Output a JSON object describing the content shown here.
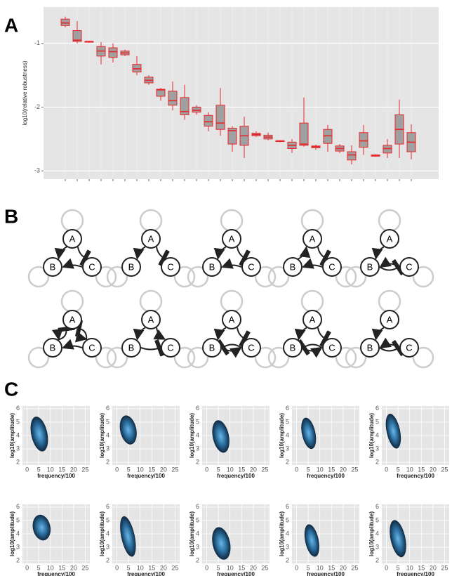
{
  "panel_labels": [
    "A",
    "B",
    "C"
  ],
  "chart_data": {
    "type": "box",
    "ylabel": "log10(relative robustness)",
    "categories": [
      null,
      null,
      null,
      null,
      null,
      null,
      null,
      null,
      null,
      null,
      null,
      null,
      null,
      null,
      null,
      null,
      null,
      null,
      null,
      null,
      null,
      null,
      null,
      null,
      null,
      null,
      null,
      null,
      null,
      null
    ],
    "color": "#e8262a",
    "fill": "#a0a0a0",
    "boxes": [
      {
        "min": -0.75,
        "q1": -0.72,
        "median": -0.68,
        "q3": -0.62,
        "max": -0.58
      },
      {
        "min": -1.0,
        "q1": -0.97,
        "median": -0.95,
        "q3": -0.8,
        "max": -0.65
      },
      {
        "min": -0.99,
        "q1": -0.98,
        "median": -0.97,
        "q3": -0.97,
        "max": -0.96
      },
      {
        "min": -1.33,
        "q1": -1.2,
        "median": -1.12,
        "q3": -1.05,
        "max": -0.98
      },
      {
        "min": -1.3,
        "q1": -1.22,
        "median": -1.13,
        "q3": -1.07,
        "max": -1.0
      },
      {
        "min": -1.2,
        "q1": -1.18,
        "median": -1.15,
        "q3": -1.12,
        "max": -1.1
      },
      {
        "min": -1.5,
        "q1": -1.45,
        "median": -1.4,
        "q3": -1.33,
        "max": -1.2
      },
      {
        "min": -1.65,
        "q1": -1.62,
        "median": -1.58,
        "q3": -1.53,
        "max": -1.5
      },
      {
        "min": -1.9,
        "q1": -1.83,
        "median": -1.73,
        "q3": -1.72,
        "max": -1.7
      },
      {
        "min": -2.05,
        "q1": -1.97,
        "median": -1.9,
        "q3": -1.75,
        "max": -1.6
      },
      {
        "min": -2.2,
        "q1": -2.12,
        "median": -2.07,
        "q3": -1.85,
        "max": -1.65
      },
      {
        "min": -2.12,
        "q1": -2.08,
        "median": -2.05,
        "q3": -2.0,
        "max": -1.97
      },
      {
        "min": -2.38,
        "q1": -2.3,
        "median": -2.23,
        "q3": -2.13,
        "max": -2.08
      },
      {
        "min": -2.45,
        "q1": -2.35,
        "median": -2.25,
        "q3": -1.97,
        "max": -1.7
      },
      {
        "min": -2.7,
        "q1": -2.58,
        "median": -2.37,
        "q3": -2.33,
        "max": -2.3
      },
      {
        "min": -2.8,
        "q1": -2.6,
        "median": -2.45,
        "q3": -2.3,
        "max": -2.15
      },
      {
        "min": -2.47,
        "q1": -2.45,
        "median": -2.43,
        "q3": -2.41,
        "max": -2.38
      },
      {
        "min": -2.52,
        "q1": -2.5,
        "median": -2.47,
        "q3": -2.44,
        "max": -2.4
      },
      {
        "min": -2.55,
        "q1": -2.54,
        "median": -2.53,
        "q3": -2.53,
        "max": -2.52
      },
      {
        "min": -2.72,
        "q1": -2.65,
        "median": -2.6,
        "q3": -2.55,
        "max": -2.5
      },
      {
        "min": -2.62,
        "q1": -2.6,
        "median": -2.58,
        "q3": -2.25,
        "max": -1.85
      },
      {
        "min": -2.67,
        "q1": -2.64,
        "median": -2.62,
        "q3": -2.61,
        "max": -2.59
      },
      {
        "min": -2.7,
        "q1": -2.57,
        "median": -2.45,
        "q3": -2.35,
        "max": -2.28
      },
      {
        "min": -2.72,
        "q1": -2.69,
        "median": -2.65,
        "q3": -2.61,
        "max": -2.58
      },
      {
        "min": -2.9,
        "q1": -2.83,
        "median": -2.75,
        "q3": -2.7,
        "max": -2.6
      },
      {
        "min": -2.75,
        "q1": -2.63,
        "median": -2.53,
        "q3": -2.4,
        "max": -2.28
      },
      {
        "min": -2.78,
        "q1": -2.77,
        "median": -2.76,
        "q3": -2.75,
        "max": -2.74
      },
      {
        "min": -2.8,
        "q1": -2.72,
        "median": -2.65,
        "q3": -2.6,
        "max": -2.5
      },
      {
        "min": -2.8,
        "q1": -2.58,
        "median": -2.35,
        "q3": -2.12,
        "max": -1.88
      },
      {
        "min": -2.82,
        "q1": -2.7,
        "median": -2.55,
        "q3": -2.4,
        "max": -2.27
      }
    ],
    "ylim": [
      -3.13,
      -0.43
    ],
    "yticks": [
      -1,
      -2,
      -3
    ],
    "grid": true
  },
  "motifs": [
    {
      "nodes": [
        "A",
        "B",
        "C"
      ]
    },
    {
      "nodes": [
        "A",
        "B",
        "C"
      ]
    },
    {
      "nodes": [
        "A",
        "B",
        "C"
      ]
    },
    {
      "nodes": [
        "A",
        "B",
        "C"
      ]
    },
    {
      "nodes": [
        "A",
        "B",
        "C"
      ]
    },
    {
      "nodes": [
        "A",
        "B",
        "C"
      ]
    },
    {
      "nodes": [
        "A",
        "B",
        "C"
      ]
    },
    {
      "nodes": [
        "A",
        "B",
        "C"
      ]
    },
    {
      "nodes": [
        "A",
        "B",
        "C"
      ]
    },
    {
      "nodes": [
        "A",
        "B",
        "C"
      ]
    }
  ],
  "density_plots": {
    "xlabel": "frequency/100",
    "ylabel": "log10(amplitude)",
    "xlim": [
      -2,
      27
    ],
    "xticks": [
      0,
      5,
      10,
      15,
      20,
      25
    ],
    "ylim": [
      1.8,
      6.2
    ],
    "yticks": [
      2,
      3,
      4,
      5,
      6
    ],
    "count": 10
  }
}
